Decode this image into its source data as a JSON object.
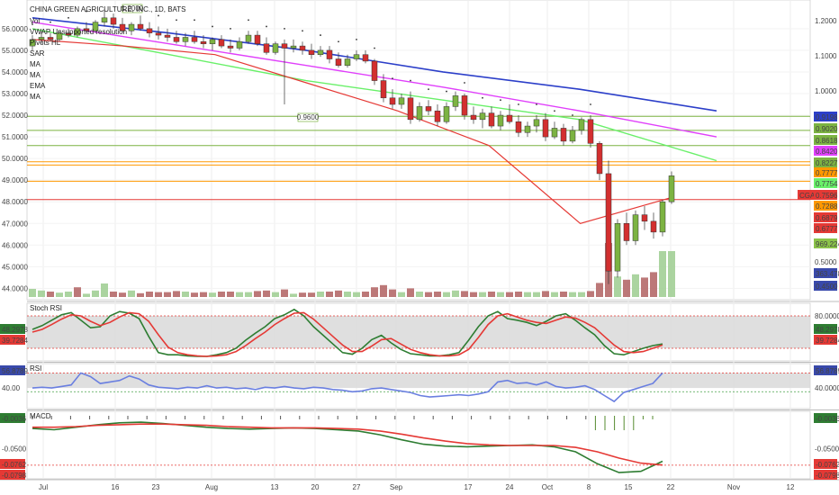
{
  "header": {
    "symbol_title": "CHINA GREEN AGRICULTURE, INC., 1D, BATS",
    "indicators": [
      "Vol",
      "VWAP Unsupported resolution",
      "Pivots HL",
      "SAR",
      "MA",
      "MA",
      "EMA",
      "MA"
    ]
  },
  "chart_data": [
    {
      "type": "candlestick",
      "title": "CHINA GREEN AGRICULTURE, INC., 1D, BATS",
      "x_ticks": [
        "Jul",
        "16",
        "23",
        "Aug",
        "13",
        "20",
        "27",
        "Sep",
        "17",
        "24",
        "Oct",
        "8",
        "15",
        "22",
        "Nov",
        "12"
      ],
      "left_axis_ticks": [
        "56.0000",
        "55.0000",
        "54.0000",
        "53.0000",
        "52.0000",
        "51.0000",
        "50.0000",
        "49.0000",
        "48.0000",
        "47.0000",
        "46.0000",
        "45.0000",
        "44.0000"
      ],
      "right_axis_ticks": [
        "1.2000",
        "1.1000",
        "1.0000",
        "0.5000"
      ],
      "right_axis_labels": [
        {
          "text": "0.9198",
          "color": "#2c3fc9"
        },
        {
          "text": "0.9020",
          "color": "#7cb342"
        },
        {
          "text": "0.8618",
          "color": "#7cb342"
        },
        {
          "text": "0.8420",
          "color": "#e040fb"
        },
        {
          "text": "0.8227",
          "color": "#7cb342"
        },
        {
          "text": "0.7777",
          "color": "#ff9800"
        },
        {
          "text": "0.7754",
          "color": "#69f069"
        },
        {
          "text": "CGA",
          "color": "#e53935"
        },
        {
          "text": "0.7596",
          "color": "#e53935"
        },
        {
          "text": "0.7288",
          "color": "#ff9800"
        },
        {
          "text": "0.6879",
          "color": "#e53935"
        },
        {
          "text": "0.6777",
          "color": "#e53935"
        },
        {
          "text": "969.224K",
          "color": "#8bc34a"
        },
        {
          "text": "363.478K",
          "color": "#3949ab"
        },
        {
          "text": "0.4500",
          "color": "#3949ab"
        }
      ],
      "pivot_labels": [
        "1.2000",
        "0.9600"
      ],
      "candles": [
        [
          55.2,
          55.7,
          55.0,
          55.5
        ],
        [
          55.5,
          55.9,
          55.3,
          55.6
        ],
        [
          55.6,
          55.8,
          55.4,
          55.5
        ],
        [
          55.5,
          55.9,
          55.4,
          55.8
        ],
        [
          55.8,
          56.0,
          55.6,
          55.7
        ],
        [
          55.7,
          56.1,
          55.6,
          56.0
        ],
        [
          56.0,
          56.3,
          55.8,
          55.9
        ],
        [
          55.9,
          56.4,
          55.8,
          56.3
        ],
        [
          56.3,
          56.9,
          56.1,
          56.5
        ],
        [
          56.5,
          56.7,
          56.0,
          56.2
        ],
        [
          56.2,
          56.5,
          55.8,
          55.9
        ],
        [
          55.9,
          56.3,
          55.7,
          56.2
        ],
        [
          56.2,
          56.6,
          55.9,
          56.0
        ],
        [
          56.0,
          56.3,
          55.6,
          55.8
        ],
        [
          55.8,
          56.1,
          55.5,
          55.7
        ],
        [
          55.7,
          56.0,
          55.4,
          55.6
        ],
        [
          55.6,
          55.9,
          55.3,
          55.4
        ],
        [
          55.4,
          55.8,
          55.2,
          55.6
        ],
        [
          55.6,
          55.9,
          55.3,
          55.4
        ],
        [
          55.4,
          55.7,
          55.1,
          55.3
        ],
        [
          55.3,
          55.6,
          55.0,
          55.5
        ],
        [
          55.5,
          55.7,
          55.1,
          55.2
        ],
        [
          55.2,
          55.5,
          54.9,
          55.1
        ],
        [
          55.1,
          55.6,
          55.0,
          55.4
        ],
        [
          55.4,
          55.9,
          55.3,
          55.7
        ],
        [
          55.7,
          55.9,
          55.2,
          55.3
        ],
        [
          55.3,
          55.6,
          54.8,
          54.9
        ],
        [
          54.9,
          55.4,
          54.8,
          55.3
        ],
        [
          55.3,
          55.5,
          52.5,
          55.1
        ],
        [
          55.1,
          55.5,
          54.9,
          55.2
        ],
        [
          55.2,
          55.4,
          54.8,
          55.0
        ],
        [
          55.0,
          55.3,
          54.6,
          54.8
        ],
        [
          54.8,
          55.2,
          54.7,
          55.0
        ],
        [
          55.0,
          55.2,
          54.4,
          54.6
        ],
        [
          54.6,
          54.9,
          54.2,
          54.3
        ],
        [
          54.3,
          54.8,
          54.2,
          54.6
        ],
        [
          54.6,
          55.0,
          54.5,
          54.8
        ],
        [
          54.8,
          55.0,
          54.4,
          54.5
        ],
        [
          54.5,
          54.6,
          53.4,
          53.6
        ],
        [
          53.6,
          53.9,
          52.6,
          52.8
        ],
        [
          52.8,
          53.2,
          52.3,
          52.5
        ],
        [
          52.5,
          53.0,
          52.3,
          52.8
        ],
        [
          52.8,
          53.1,
          51.6,
          51.8
        ],
        [
          51.8,
          52.6,
          51.7,
          52.4
        ],
        [
          52.4,
          52.7,
          52.0,
          52.2
        ],
        [
          52.2,
          52.5,
          51.5,
          51.7
        ],
        [
          51.7,
          52.6,
          51.6,
          52.4
        ],
        [
          52.4,
          53.1,
          52.2,
          52.9
        ],
        [
          52.9,
          53.0,
          51.8,
          52.0
        ],
        [
          52.0,
          52.4,
          51.6,
          51.8
        ],
        [
          51.8,
          52.3,
          51.4,
          52.1
        ],
        [
          52.1,
          52.4,
          51.4,
          51.5
        ],
        [
          51.5,
          52.2,
          51.3,
          52.0
        ],
        [
          52.0,
          52.5,
          51.6,
          51.7
        ],
        [
          51.7,
          52.0,
          51.0,
          51.2
        ],
        [
          51.2,
          51.7,
          51.0,
          51.5
        ],
        [
          51.5,
          52.0,
          51.2,
          51.8
        ],
        [
          51.8,
          52.1,
          50.8,
          51.0
        ],
        [
          51.0,
          51.7,
          50.9,
          51.4
        ],
        [
          51.4,
          51.6,
          50.6,
          50.8
        ],
        [
          50.8,
          51.5,
          50.7,
          51.3
        ],
        [
          51.3,
          51.9,
          51.1,
          51.8
        ],
        [
          51.8,
          52.0,
          50.5,
          50.7
        ],
        [
          50.7,
          50.8,
          49.0,
          49.3
        ],
        [
          49.3,
          49.9,
          44.2,
          44.8
        ],
        [
          44.8,
          47.2,
          44.5,
          47.0
        ],
        [
          47.0,
          47.5,
          46.0,
          46.2
        ],
        [
          46.2,
          47.6,
          46.0,
          47.4
        ],
        [
          47.4,
          47.8,
          46.7,
          47.1
        ],
        [
          47.1,
          47.5,
          46.3,
          46.6
        ],
        [
          46.6,
          48.1,
          46.4,
          48.0
        ],
        [
          48.0,
          49.4,
          47.9,
          49.2
        ]
      ],
      "volume": [
        [
          15,
          "#9ccc8f"
        ],
        [
          12,
          "#9ccc8f"
        ],
        [
          10,
          "#b06060"
        ],
        [
          8,
          "#9ccc8f"
        ],
        [
          10,
          "#9ccc8f"
        ],
        [
          18,
          "#b06060"
        ],
        [
          6,
          "#9ccc8f"
        ],
        [
          12,
          "#9ccc8f"
        ],
        [
          25,
          "#9ccc8f"
        ],
        [
          10,
          "#b06060"
        ],
        [
          8,
          "#b06060"
        ],
        [
          12,
          "#9ccc8f"
        ],
        [
          7,
          "#b06060"
        ],
        [
          10,
          "#b06060"
        ],
        [
          9,
          "#b06060"
        ],
        [
          9,
          "#b06060"
        ],
        [
          11,
          "#b06060"
        ],
        [
          10,
          "#9ccc8f"
        ],
        [
          8,
          "#b06060"
        ],
        [
          9,
          "#b06060"
        ],
        [
          8,
          "#9ccc8f"
        ],
        [
          10,
          "#b06060"
        ],
        [
          10,
          "#b06060"
        ],
        [
          9,
          "#9ccc8f"
        ],
        [
          9,
          "#9ccc8f"
        ],
        [
          11,
          "#b06060"
        ],
        [
          12,
          "#b06060"
        ],
        [
          9,
          "#9ccc8f"
        ],
        [
          14,
          "#b06060"
        ],
        [
          6,
          "#9ccc8f"
        ],
        [
          8,
          "#b06060"
        ],
        [
          8,
          "#b06060"
        ],
        [
          10,
          "#9ccc8f"
        ],
        [
          10,
          "#b06060"
        ],
        [
          12,
          "#b06060"
        ],
        [
          10,
          "#9ccc8f"
        ],
        [
          9,
          "#9ccc8f"
        ],
        [
          10,
          "#b06060"
        ],
        [
          18,
          "#b06060"
        ],
        [
          22,
          "#b06060"
        ],
        [
          14,
          "#b06060"
        ],
        [
          9,
          "#9ccc8f"
        ],
        [
          16,
          "#b06060"
        ],
        [
          10,
          "#9ccc8f"
        ],
        [
          9,
          "#b06060"
        ],
        [
          10,
          "#b06060"
        ],
        [
          9,
          "#9ccc8f"
        ],
        [
          12,
          "#9ccc8f"
        ],
        [
          11,
          "#b06060"
        ],
        [
          9,
          "#b06060"
        ],
        [
          9,
          "#9ccc8f"
        ],
        [
          10,
          "#b06060"
        ],
        [
          9,
          "#9ccc8f"
        ],
        [
          9,
          "#b06060"
        ],
        [
          10,
          "#b06060"
        ],
        [
          9,
          "#9ccc8f"
        ],
        [
          9,
          "#9ccc8f"
        ],
        [
          11,
          "#b06060"
        ],
        [
          9,
          "#9ccc8f"
        ],
        [
          10,
          "#b06060"
        ],
        [
          9,
          "#9ccc8f"
        ],
        [
          9,
          "#9ccc8f"
        ],
        [
          11,
          "#b06060"
        ],
        [
          26,
          "#b06060"
        ],
        [
          100,
          "#b06060"
        ],
        [
          38,
          "#9ccc8f"
        ],
        [
          32,
          "#b06060"
        ],
        [
          42,
          "#9ccc8f"
        ],
        [
          36,
          "#b06060"
        ],
        [
          46,
          "#b06060"
        ],
        [
          85,
          "#9ccc8f"
        ],
        [
          85,
          "#9ccc8f"
        ]
      ],
      "ma_blue": [
        56.5,
        55.8,
        55.0,
        54.0,
        53.2,
        52.2
      ],
      "ma_magenta": [
        56.3,
        55.3,
        54.3,
        53.3,
        52.2,
        51.0
      ],
      "ma_green": [
        56.0,
        54.8,
        53.6,
        52.7,
        51.8,
        49.9
      ],
      "ema_red": [
        55.5,
        55.2,
        54.8,
        53.5,
        52.2,
        50.6,
        47.0,
        48.2
      ],
      "horizontal_levels": [
        {
          "y": 51.95,
          "color": "#7cb342"
        },
        {
          "y": 51.3,
          "color": "#7cb342"
        },
        {
          "y": 50.6,
          "color": "#7cb342"
        },
        {
          "y": 49.85,
          "color": "#ff9800"
        },
        {
          "y": 49.7,
          "color": "#ff9800"
        },
        {
          "y": 48.95,
          "color": "#ff9800"
        },
        {
          "y": 48.1,
          "color": "#e53935"
        }
      ],
      "ylim": [
        43.6,
        57.2
      ]
    },
    {
      "type": "line",
      "title": "Stoch RSI",
      "ticks": [
        "80.0000"
      ],
      "band": [
        20,
        80
      ],
      "series": [
        {
          "name": "",
          "color": "#2e7d32",
          "values": [
            55,
            62,
            72,
            82,
            86,
            72,
            58,
            60,
            80,
            88,
            85,
            75,
            42,
            12,
            8,
            8,
            6,
            5,
            5,
            8,
            12,
            20,
            35,
            48,
            60,
            75,
            82,
            92,
            80,
            60,
            44,
            28,
            12,
            9,
            20,
            36,
            44,
            30,
            18,
            10,
            8,
            6,
            6,
            8,
            12,
            35,
            60,
            80,
            88,
            75,
            72,
            68,
            62,
            70,
            80,
            84,
            72,
            58,
            45,
            25,
            10,
            8,
            14,
            20,
            25,
            28
          ]
        },
        {
          "name": "",
          "color": "#e53935",
          "values": [
            50,
            55,
            64,
            74,
            82,
            80,
            70,
            62,
            68,
            78,
            86,
            84,
            70,
            45,
            22,
            12,
            8,
            6,
            5,
            6,
            8,
            14,
            25,
            38,
            50,
            64,
            75,
            85,
            86,
            74,
            58,
            42,
            26,
            14,
            14,
            24,
            36,
            38,
            28,
            18,
            12,
            8,
            6,
            6,
            8,
            18,
            40,
            64,
            80,
            84,
            78,
            72,
            68,
            66,
            72,
            78,
            76,
            68,
            58,
            42,
            26,
            14,
            12,
            14,
            20,
            26
          ]
        }
      ],
      "value_labels": [
        {
          "text": "48.2978",
          "color": "#2e7d32"
        },
        {
          "text": "39.7284",
          "color": "#e53935"
        }
      ]
    },
    {
      "type": "line",
      "title": "RSI",
      "ticks": [
        "40.0000"
      ],
      "series": [
        {
          "name": "",
          "color": "#6a7fe0",
          "values": [
            40,
            41,
            40,
            42,
            44,
            60,
            55,
            46,
            48,
            50,
            56,
            52,
            44,
            41,
            40,
            39,
            41,
            40,
            43,
            40,
            41,
            39,
            40,
            38,
            41,
            40,
            42,
            40,
            39,
            41,
            40,
            38,
            37,
            35,
            36,
            39,
            40,
            38,
            36,
            34,
            30,
            28,
            29,
            30,
            31,
            30,
            32,
            35,
            48,
            50,
            46,
            47,
            44,
            48,
            42,
            40,
            41,
            43,
            38,
            30,
            22,
            34,
            38,
            42,
            46,
            60
          ]
        }
      ],
      "value_labels": [
        {
          "text": "56.8789",
          "color": "#3949ab"
        }
      ]
    },
    {
      "type": "line",
      "title": "MACD",
      "ticks": [
        "-0.0500"
      ],
      "series": [
        {
          "name": "",
          "color": "#2e7d32",
          "values": [
            -0.018,
            -0.02,
            -0.016,
            -0.012,
            -0.009,
            -0.008,
            -0.01,
            -0.013,
            -0.016,
            -0.018,
            -0.019,
            -0.018,
            -0.017,
            -0.018,
            -0.02,
            -0.022,
            -0.028,
            -0.036,
            -0.043,
            -0.046,
            -0.047,
            -0.046,
            -0.045,
            -0.044,
            -0.047,
            -0.055,
            -0.074,
            -0.088,
            -0.086,
            -0.07
          ]
        },
        {
          "name": "",
          "color": "#e53935",
          "values": [
            -0.016,
            -0.016,
            -0.015,
            -0.013,
            -0.012,
            -0.011,
            -0.011,
            -0.012,
            -0.013,
            -0.015,
            -0.016,
            -0.017,
            -0.017,
            -0.017,
            -0.018,
            -0.019,
            -0.022,
            -0.027,
            -0.033,
            -0.038,
            -0.042,
            -0.044,
            -0.045,
            -0.045,
            -0.045,
            -0.048,
            -0.055,
            -0.065,
            -0.073,
            -0.076
          ]
        }
      ],
      "value_labels": [
        {
          "text": "-0.0036",
          "color": "#2e7d32"
        },
        {
          "text": "-0.0762",
          "color": "#e53935"
        },
        {
          "text": "-0.0798",
          "color": "#e53935"
        }
      ]
    }
  ]
}
